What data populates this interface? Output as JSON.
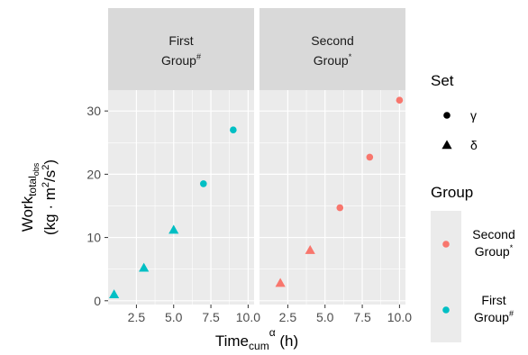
{
  "chart_data": {
    "type": "scatter",
    "facets": [
      {
        "strip_line1": "First",
        "strip_line2": "Group",
        "strip_sup": "#",
        "group": "First Group#",
        "points": [
          {
            "x": 1,
            "y": 1,
            "set": "δ"
          },
          {
            "x": 3,
            "y": 5.2,
            "set": "δ"
          },
          {
            "x": 5,
            "y": 11.2,
            "set": "δ"
          },
          {
            "x": 7,
            "y": 18.5,
            "set": "γ"
          },
          {
            "x": 9,
            "y": 27,
            "set": "γ"
          }
        ]
      },
      {
        "strip_line1": "Second",
        "strip_line2": "Group",
        "strip_sup": "*",
        "group": "Second Group*",
        "points": [
          {
            "x": 2,
            "y": 2.8,
            "set": "δ"
          },
          {
            "x": 4,
            "y": 8,
            "set": "δ"
          },
          {
            "x": 6,
            "y": 14.7,
            "set": "γ"
          },
          {
            "x": 8,
            "y": 22.7,
            "set": "γ"
          },
          {
            "x": 10,
            "y": 31.7,
            "set": "γ"
          }
        ]
      }
    ],
    "xlim": [
      0.6,
      10.4
    ],
    "ylim": [
      -0.6,
      33.3
    ],
    "xticks": [
      "2.5",
      "5.0",
      "7.5",
      "10.0"
    ],
    "xtick_values": [
      2.5,
      5,
      7.5,
      10
    ],
    "yticks": [
      "0",
      "10",
      "20",
      "30"
    ],
    "ytick_values": [
      0,
      10,
      20,
      30
    ],
    "xlabel": {
      "main": "Time",
      "sub": "cum",
      "sup": "α",
      "unit": "(h)"
    },
    "ylabel": {
      "main": "Work",
      "sub": "total",
      "subsub": "obs",
      "unit_pre": "(kg · m",
      "unit_sup": "2",
      "unit_mid": "/s",
      "unit_sup2": "2",
      "unit_post": ")"
    },
    "grid": true,
    "legend_position": "right",
    "legends": {
      "set": {
        "title": "Set",
        "items": [
          {
            "label": "γ",
            "shape": "circle"
          },
          {
            "label": "δ",
            "shape": "triangle"
          }
        ]
      },
      "group": {
        "title": "Group",
        "items": [
          {
            "line1": "Second",
            "line2": "Group",
            "sup": "*",
            "color": "#F8766D"
          },
          {
            "line1": "First",
            "line2": "Group",
            "sup": "#",
            "color": "#00BFC4"
          }
        ]
      }
    },
    "colors": {
      "Second Group*": "#F8766D",
      "First Group#": "#00BFC4",
      "panel_bg": "#EBEBEB",
      "strip_bg": "#D9D9D9",
      "grid_major": "#FFFFFF"
    }
  }
}
